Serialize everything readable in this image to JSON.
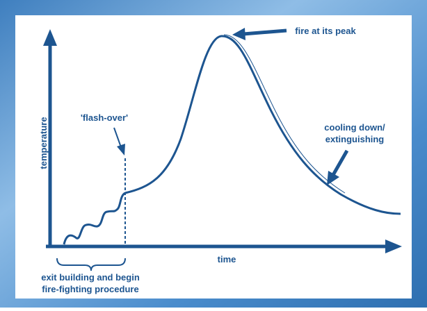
{
  "axes": {
    "y": "temperature",
    "x": "time"
  },
  "annotations": {
    "peak": "fire at its peak",
    "flash_over": "'flash-over'",
    "cooling": [
      "cooling down/",
      "extinguishing"
    ],
    "procedure": [
      "exit building and begin",
      "fire-fighting procedure"
    ]
  }
}
